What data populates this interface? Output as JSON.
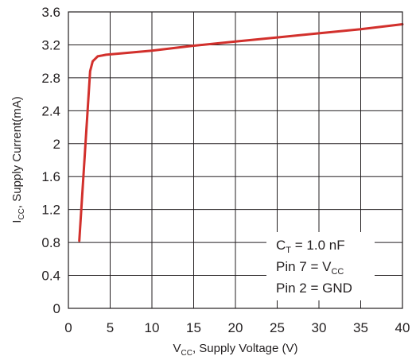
{
  "chart_data": {
    "type": "line",
    "xlabel": {
      "main": "V",
      "sub": "CC",
      "rest": ", Supply Voltage (V)"
    },
    "ylabel": {
      "main": "I",
      "sub": "CC",
      "rest": ", Supply Current(mA)"
    },
    "xlim": [
      0,
      40
    ],
    "ylim": [
      0,
      3.6
    ],
    "x_ticks": [
      "0",
      "5",
      "10",
      "15",
      "20",
      "25",
      "30",
      "35",
      "40"
    ],
    "y_ticks": [
      "0",
      "0.4",
      "0.8",
      "1.2",
      "1.6",
      "2",
      "2.4",
      "2.8",
      "3.2",
      "3.6"
    ],
    "grid": true,
    "series": [
      {
        "color": "#d2302c",
        "x": [
          1.3,
          2.6,
          2.9,
          3.5,
          4.5,
          10,
          15,
          20,
          25,
          30,
          35,
          40
        ],
        "y": [
          0.82,
          2.88,
          3.0,
          3.06,
          3.08,
          3.13,
          3.19,
          3.24,
          3.29,
          3.34,
          3.39,
          3.45
        ]
      }
    ],
    "annotations": [
      {
        "main": "C",
        "sub": "T",
        "rest": " = 1.0 nF"
      },
      {
        "main": "Pin 7 = V",
        "sub": "CC",
        "rest": ""
      },
      {
        "main": "Pin 2 = GND",
        "sub": "",
        "rest": ""
      }
    ]
  }
}
